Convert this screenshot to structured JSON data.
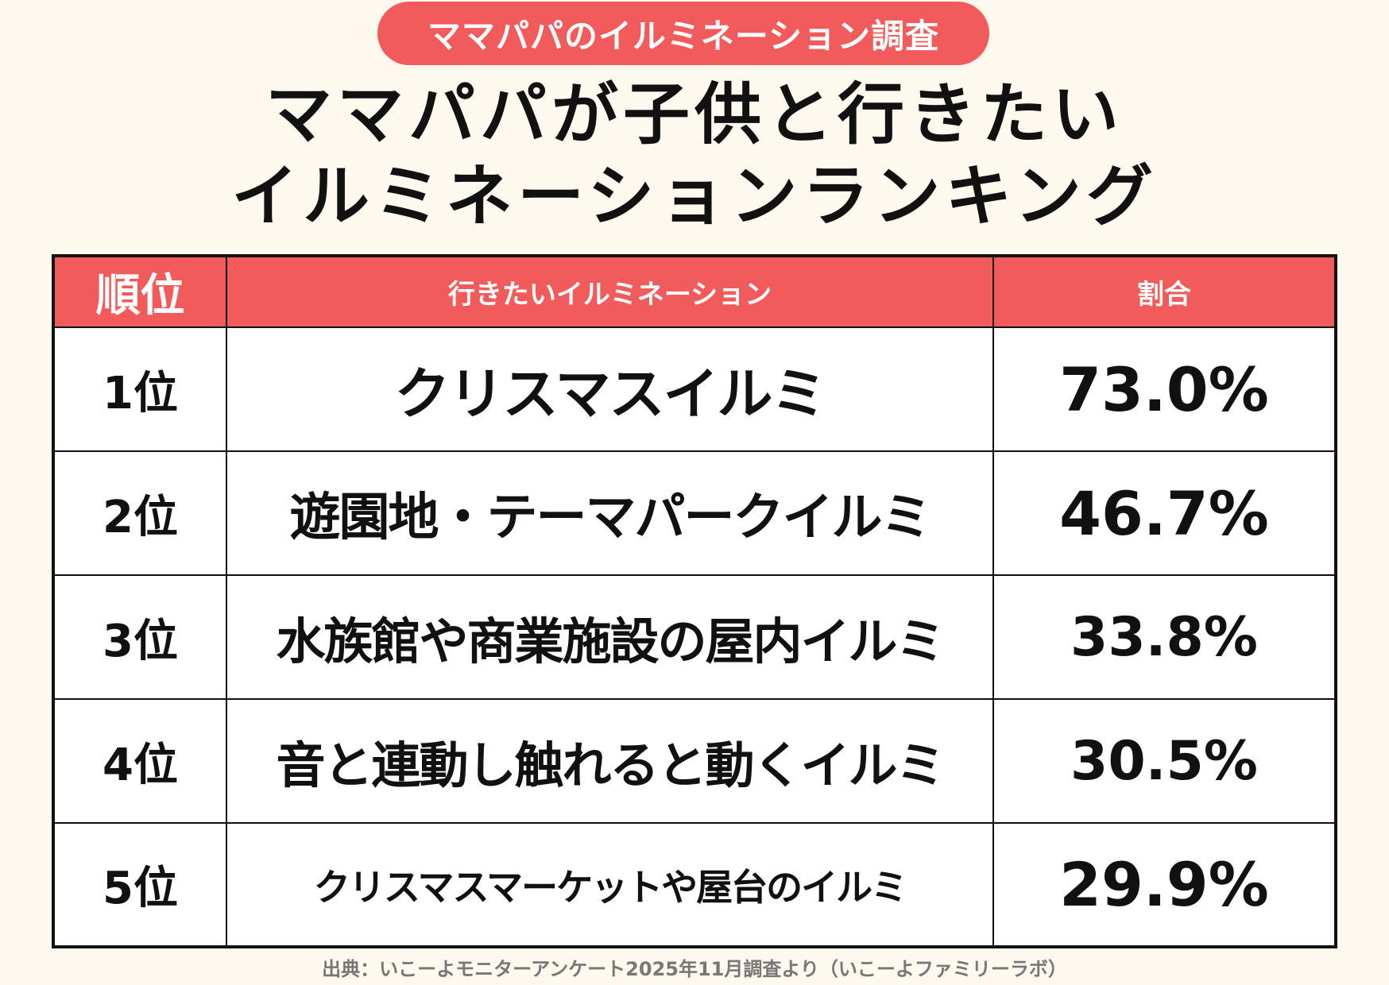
{
  "badge": "ママパパのイルミネーション調査",
  "title": {
    "line1": "ママパパが子供と行きたい",
    "line2": "イルミネーションランキング"
  },
  "table": {
    "headers": [
      "順位",
      "行きたいイルミネーション",
      "割合"
    ],
    "rows": [
      {
        "rank": "1位",
        "name": "クリスマスイルミ",
        "share": "73.0%"
      },
      {
        "rank": "2位",
        "name": "遊園地・テーマパークイルミ",
        "share": "46.7%"
      },
      {
        "rank": "3位",
        "name": "水族館や商業施設の屋内イルミ",
        "share": "33.8%"
      },
      {
        "rank": "4位",
        "name": "音と連動し触れると動くイルミ",
        "share": "30.5%"
      },
      {
        "rank": "5位",
        "name": "クリスマスマーケットや屋台のイルミ",
        "share": "29.9%"
      }
    ]
  },
  "footer": "出典：いこーよモニターアンケート2025年11月調査より（いこーよファミリーラボ）",
  "colors": {
    "accent": "#f15b5b",
    "background": "#fdf9ee"
  }
}
